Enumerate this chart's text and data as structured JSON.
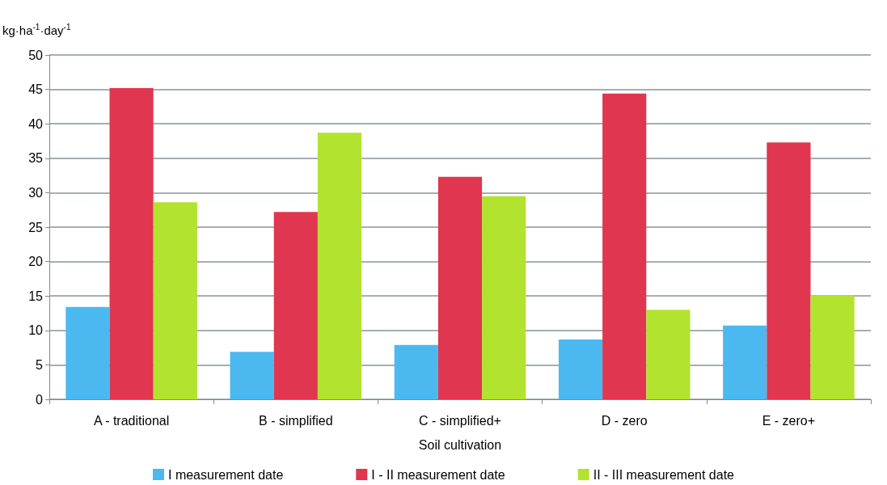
{
  "chart_data": {
    "type": "bar",
    "xlabel": "Soil cultivation",
    "ylabel": "kg·ha$^{-1}$·day$^{-1}$",
    "categories": [
      "A - traditional",
      "B - simplified",
      "C - simplified+",
      "D - zero",
      "E - zero+"
    ],
    "series": [
      {
        "name": "I measurement date",
        "color": "#4cb8f0",
        "values": [
          13.4,
          6.9,
          7.9,
          8.7,
          10.7
        ]
      },
      {
        "name": "I - II measurement date",
        "color": "#e0364f",
        "values": [
          45.2,
          27.2,
          32.3,
          44.4,
          37.3
        ]
      },
      {
        "name": "II - III measurement date",
        "color": "#b2e32e",
        "values": [
          28.6,
          38.7,
          29.5,
          13.0,
          15.1
        ]
      }
    ],
    "ylim": [
      0,
      50
    ],
    "yticks": [
      0,
      5,
      10,
      15,
      20,
      25,
      30,
      35,
      40,
      45,
      50
    ],
    "grid": "y",
    "legend": "bottom"
  }
}
